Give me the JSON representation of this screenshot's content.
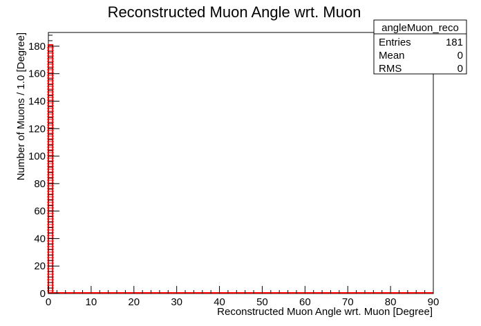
{
  "chart_data": {
    "type": "histogram",
    "title": "Reconstructed Muon Angle wrt. Muon",
    "xlabel": "Reconstructed Muon Angle wrt. Muon [Degree]",
    "ylabel": "Number of Muons / 1.0 [Degree]",
    "xlim": [
      0,
      90
    ],
    "ylim": [
      0,
      190
    ],
    "x_ticks": [
      0,
      10,
      20,
      30,
      40,
      50,
      60,
      70,
      80,
      90
    ],
    "y_ticks": [
      0,
      20,
      40,
      60,
      80,
      100,
      120,
      140,
      160,
      180
    ],
    "bin_width": 1.0,
    "bins": [
      {
        "x_low": 0,
        "x_high": 1,
        "count": 181
      }
    ],
    "line_color": "#ff0000",
    "grid": false
  },
  "stats_box": {
    "name": "angleMuon_reco",
    "rows": [
      {
        "label": "Entries",
        "value": "181"
      },
      {
        "label": "Mean",
        "value": "0"
      },
      {
        "label": "RMS",
        "value": "0"
      }
    ]
  }
}
